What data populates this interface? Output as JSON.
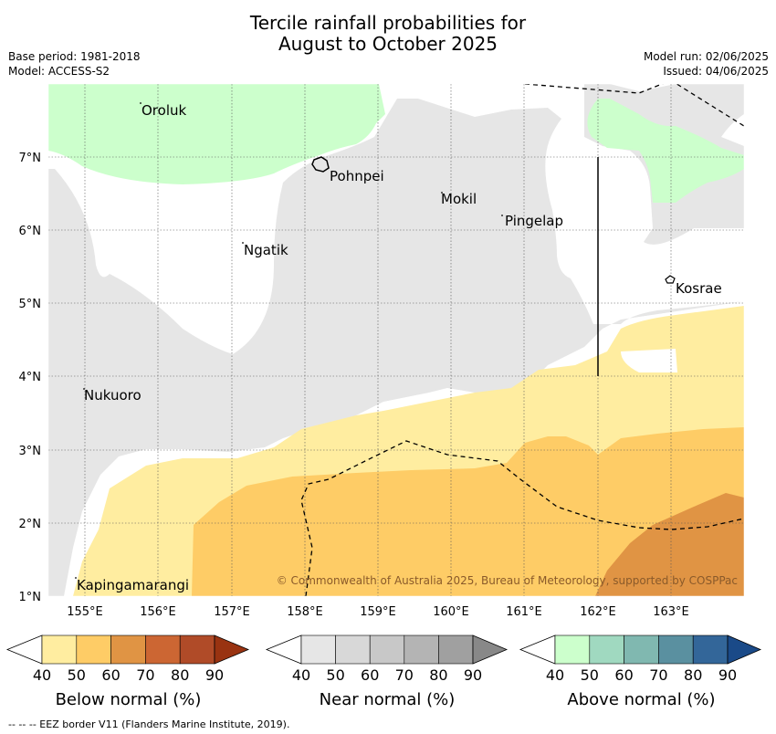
{
  "header": {
    "title_line1": "Tercile rainfall probabilities for",
    "title_line2": "August to October 2025",
    "base_period": "Base period: 1981-2018",
    "model": "Model: ACCESS-S2",
    "model_run": "Model run: 02/06/2025",
    "issued": "Issued: 04/06/2025"
  },
  "map": {
    "places": [
      "Oroluk",
      "Pohnpei",
      "Mokil",
      "Pingelap",
      "Ngatik",
      "Kosrae",
      "Nukuoro",
      "Kapingamarangi"
    ],
    "lat_labels": [
      "7°N",
      "6°N",
      "5°N",
      "4°N",
      "3°N",
      "2°N",
      "1°N"
    ],
    "lon_labels": [
      "155°E",
      "156°E",
      "157°E",
      "158°E",
      "159°E",
      "160°E",
      "161°E",
      "162°E",
      "163°E"
    ],
    "copyright": "© Commonwealth of Australia 2025, Bureau of Meteorology, supported by COSPPac",
    "colors": {
      "near_normal_fill": "#e6e6e6",
      "above_normal_fill": "#ccffcc",
      "below_40": "#ffeda0",
      "below_50": "#fecc66",
      "below_60": "#e09444"
    }
  },
  "legends": [
    {
      "title": "Below normal (%)",
      "ticks": [
        "40",
        "50",
        "60",
        "70",
        "80",
        "90"
      ],
      "colors": [
        "#ffeda0",
        "#fecc66",
        "#e09444",
        "#cc6633",
        "#b04b28",
        "#993311"
      ]
    },
    {
      "title": "Near normal (%)",
      "ticks": [
        "40",
        "50",
        "60",
        "70",
        "80",
        "90"
      ],
      "colors": [
        "#e6e6e6",
        "#d8d8d8",
        "#c8c8c8",
        "#b4b4b4",
        "#a0a0a0",
        "#888888"
      ]
    },
    {
      "title": "Above normal (%)",
      "ticks": [
        "40",
        "50",
        "60",
        "70",
        "80",
        "90"
      ],
      "colors": [
        "#ccffcc",
        "#a0d9c0",
        "#80b8b0",
        "#5a90a0",
        "#336699",
        "#1a4a88"
      ]
    }
  ],
  "footer": {
    "eez_note": "--  --  -- EEZ border V11 (Flanders Marine Institute, 2019)."
  }
}
